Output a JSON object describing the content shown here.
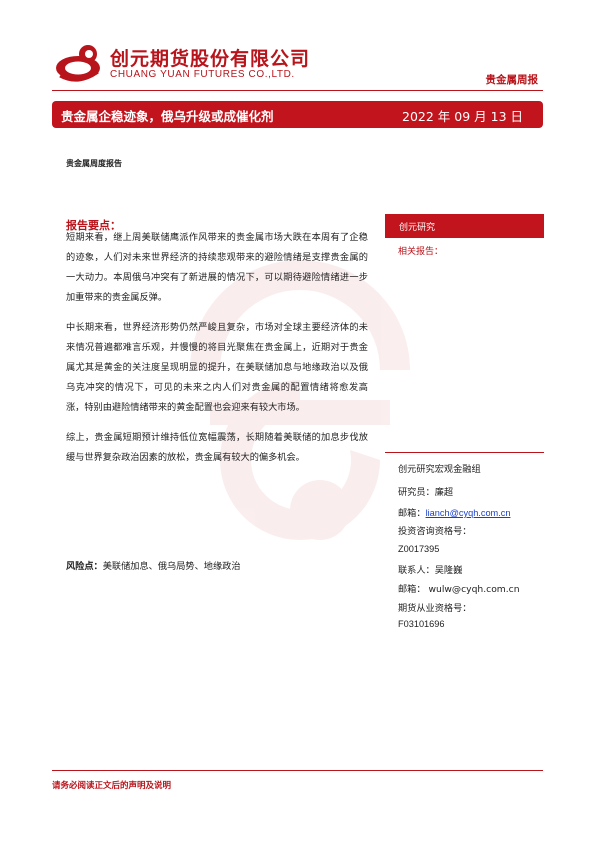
{
  "header": {
    "company_cn": "创元期货股份有限公司",
    "company_en": "CHUANG YUAN FUTURES CO.,LTD.",
    "report_type": "贵金属周报",
    "brand_color": "#b8141b"
  },
  "banner": {
    "title": "贵金属企稳迹象，俄乌升级或成催化剂",
    "date": "2022 年 09 月 13 日"
  },
  "category": "贵金属周度报告",
  "main": {
    "points_heading": "报告要点：",
    "paragraphs": [
      "短期来看，继上周美联储鹰派作风带来的贵金属市场大跌在本周有了企稳的迹象，人们对未来世界经济的持续悲观带来的避险情绪是支撑贵金属的一大动力。本周俄乌冲突有了新进展的情况下，可以期待避险情绪进一步加重带来的贵金属反弹。",
      "中长期来看，世界经济形势仍然严峻且复杂，市场对全球主要经济体的未来情况普遍都难言乐观，并慢慢的将目光聚焦在贵金属上，近期对于贵金属尤其是黄金的关注度呈现明显的提升，在美联储加息与地缘政治以及俄乌克冲突的情况下，可见的未来之内人们对贵金属的配置情绪将愈发高涨，特别由避险情绪带来的黄金配置也会迎来有较大市场。",
      "综上，贵金属短期预计维持低位宽幅震荡，长期随着美联储的加息步伐放缓与世界复杂政治因素的放松，贵金属有较大的偏多机会。"
    ],
    "risk_label": "风险点：",
    "risk_text": "美联储加息、俄乌局势、地缘政治"
  },
  "sidebar": {
    "header": "创元研究",
    "related": "相关报告：",
    "contacts": [
      "创元研究宏观金融组",
      "研究员：廉超",
      "邮箱：",
      "lianch@cyqh.com.cn",
      "投资咨询资格号：",
      "Z0017395",
      "联系人：吴隆巍",
      "邮箱： wulw@cyqh.com.cn",
      "期货从业资格号：",
      "F03101696"
    ]
  },
  "footer": {
    "note": "请务必阅读正文后的声明及说明"
  }
}
